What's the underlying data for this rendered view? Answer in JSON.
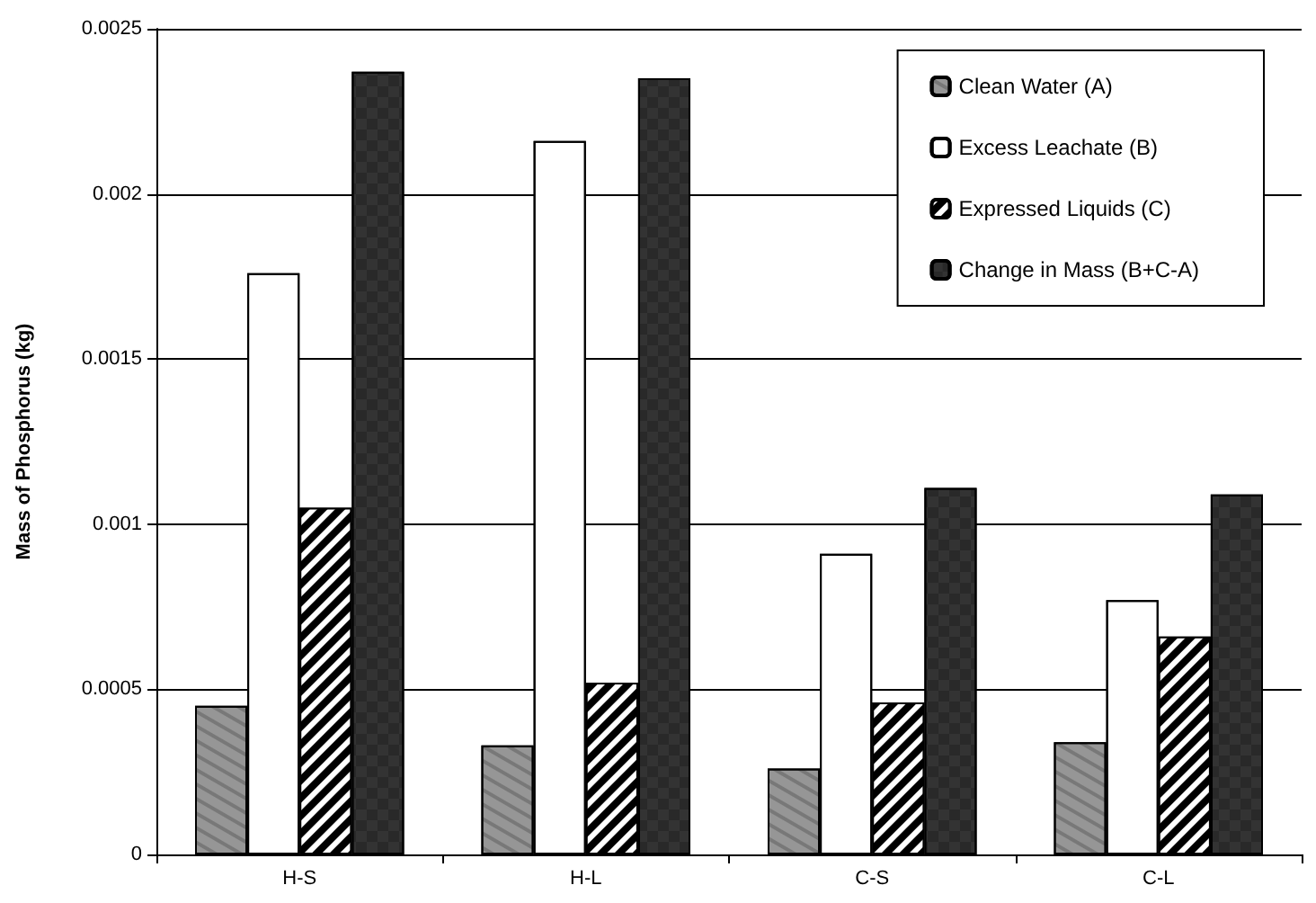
{
  "chart_data": {
    "type": "bar",
    "ylabel": "Mass of Phosphorus (kg)",
    "categories": [
      "H-S",
      "H-L",
      "C-S",
      "C-L"
    ],
    "series": [
      {
        "name": "Clean Water (A)",
        "color": "#969696",
        "values": [
          0.00045,
          0.00033,
          0.00026,
          0.00034
        ]
      },
      {
        "name": "Excess Leachate (B)",
        "color": "#ffffff",
        "values": [
          0.00176,
          0.00216,
          0.00091,
          0.00077
        ]
      },
      {
        "name": "Expressed Liquids (C)",
        "color": "#000000",
        "values": [
          0.00105,
          0.00052,
          0.00046,
          0.00066
        ]
      },
      {
        "name": "Change in Mass (B+C-A)",
        "color": "#333333",
        "values": [
          0.00237,
          0.00235,
          0.00111,
          0.00109
        ]
      }
    ],
    "ylim": [
      0,
      0.0025
    ],
    "yticks": [
      0,
      0.0005,
      0.001,
      0.0015,
      0.002,
      0.0025
    ],
    "grid": "y",
    "legend": "top right"
  }
}
